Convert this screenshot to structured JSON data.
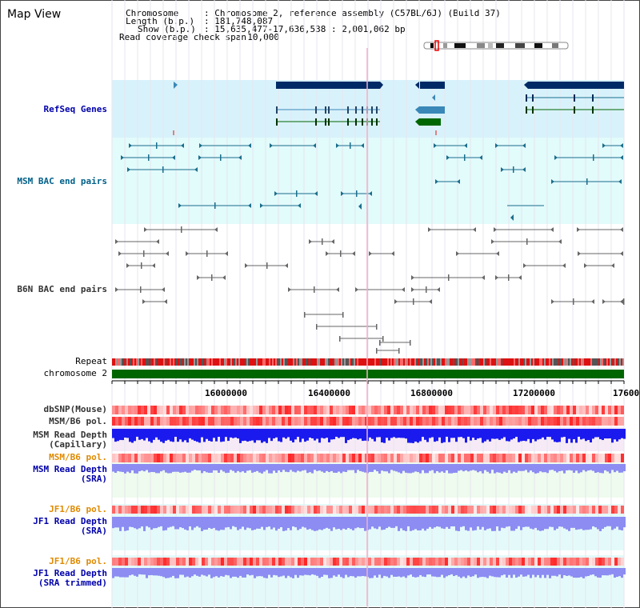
{
  "page": {
    "title": "Map View"
  },
  "info": {
    "chromosome_key": "Chromosome",
    "chromosome_value": "Chromosome 2, reference assembly (C57BL/6J) (Build 37)",
    "length_key": "Length (b.p.)",
    "length_value": "181,748,087",
    "show_key": "Show (b.p.)",
    "show_value": "15,635,477-17,636,538 : 2,001,062 bp",
    "coverage_key": "Read coverage check span",
    "coverage_value": "10,000"
  },
  "tracks": {
    "refseq": "RefSeq Genes",
    "msm_bac": "MSM BAC end pairs",
    "b6n_bac": "B6N BAC end pairs",
    "repeat": "Repeat",
    "chromosome": "chromosome 2",
    "dbsnp": "dbSNP(Mouse)",
    "msm_b6_pol": "MSM/B6 pol.",
    "msm_depth_cap_1": "MSM Read Depth",
    "msm_depth_cap_2": "(Capillary)",
    "msm_b6_pol_sra": "MSM/B6 pol.",
    "msm_depth_sra_1": "MSM Read Depth",
    "msm_depth_sra_2": "(SRA)",
    "jf1_b6_pol": "JF1/B6 pol.",
    "jf1_depth_sra_1": "JF1 Read Depth",
    "jf1_depth_sra_2": "(SRA)",
    "jf1_b6_pol_trim": "JF1/B6 pol.",
    "jf1_depth_trim_1": "JF1 Read Depth",
    "jf1_depth_trim_2": "(SRA trimmed)"
  },
  "axis": {
    "ticks": [
      "16000000",
      "16400000",
      "16800000",
      "17200000",
      "17600000"
    ]
  },
  "colors": {
    "refseq_bg": "#d8f2fb",
    "msm_bg": "#e2fbfb",
    "gene_dark": "#002a66",
    "gene_mid": "#3a88b8",
    "gene_green": "#006600",
    "bac_teal": "#1a6e8c",
    "bac_gray": "#666666",
    "chromosome": "#006600",
    "depth_blue": "#1a1aee",
    "depth_light": "#8c8cf2",
    "pol_red": "#ee3333"
  }
}
